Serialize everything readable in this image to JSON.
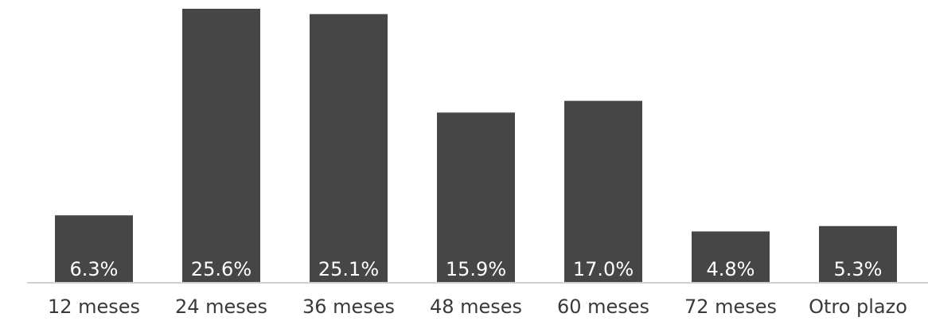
{
  "chart_data": {
    "type": "bar",
    "title": "",
    "xlabel": "",
    "ylabel": "",
    "categories": [
      "12 meses",
      "24 meses",
      "36 meses",
      "48 meses",
      "60 meses",
      "72 meses",
      "Otro plazo"
    ],
    "values": [
      6.3,
      25.6,
      25.1,
      15.9,
      17.0,
      4.8,
      5.3
    ],
    "value_labels": [
      "6.3%",
      "25.6%",
      "25.1%",
      "15.9%",
      "17.0%",
      "4.8%",
      "5.3%"
    ],
    "unit": "%",
    "ylim": [
      0,
      25.6
    ],
    "grid": false,
    "legend": "none",
    "bar_color": "#464646"
  }
}
